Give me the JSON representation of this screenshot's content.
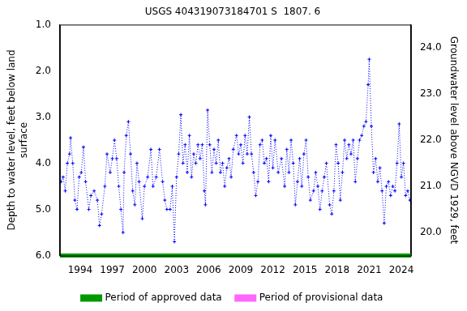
{
  "chart_data": {
    "type": "line",
    "title": "USGS 404319073184701 S  1807. 6",
    "y_label": [
      "Depth to water level, feet below land",
      "surface"
    ],
    "y2_label": "Groundwater level above NGVD 1929, feet",
    "xlim": [
      1992.1,
      2024.9
    ],
    "xticks": [
      1994,
      1997,
      2000,
      2003,
      2006,
      2009,
      2012,
      2015,
      2018,
      2021,
      2024
    ],
    "ylim": [
      1.0,
      6.0
    ],
    "yticks": [
      {
        "value": 1,
        "label": "1.0"
      },
      {
        "value": 2,
        "label": "2.0"
      },
      {
        "value": 3,
        "label": "3.0"
      },
      {
        "value": 4,
        "label": "4.0"
      },
      {
        "value": 5,
        "label": "5.0"
      },
      {
        "value": 6,
        "label": "6.0"
      }
    ],
    "y2lim": [
      19.5,
      24.5
    ],
    "y2ticks": [
      {
        "value": 20,
        "label": "20.0"
      },
      {
        "value": 21,
        "label": "21.0"
      },
      {
        "value": 22,
        "label": "22.0"
      },
      {
        "value": 23,
        "label": "23.0"
      },
      {
        "value": 24,
        "label": "24.0"
      }
    ],
    "grid": false,
    "legend": "bottom",
    "x": [
      1992.2,
      1992.4,
      1992.6,
      1992.8,
      1993.0,
      1993.1,
      1993.3,
      1993.5,
      1993.7,
      1993.9,
      1994.1,
      1994.3,
      1994.5,
      1994.8,
      1995.0,
      1995.3,
      1995.6,
      1995.8,
      1996.0,
      1996.3,
      1996.5,
      1996.8,
      1997.0,
      1997.2,
      1997.4,
      1997.6,
      1997.8,
      1998.0,
      1998.1,
      1998.3,
      1998.5,
      1998.7,
      1998.9,
      1999.1,
      1999.3,
      1999.5,
      1999.8,
      2000.0,
      2000.3,
      2000.6,
      2000.8,
      2001.1,
      2001.4,
      2001.7,
      2001.9,
      2002.1,
      2002.4,
      2002.6,
      2002.8,
      2003.0,
      2003.2,
      2003.4,
      2003.6,
      2003.8,
      2004.0,
      2004.2,
      2004.4,
      2004.6,
      2004.8,
      2005.0,
      2005.2,
      2005.4,
      2005.6,
      2005.7,
      2005.9,
      2006.1,
      2006.3,
      2006.5,
      2006.7,
      2006.9,
      2007.1,
      2007.3,
      2007.5,
      2007.7,
      2007.9,
      2008.1,
      2008.3,
      2008.6,
      2008.8,
      2009.0,
      2009.2,
      2009.4,
      2009.6,
      2009.8,
      2010.0,
      2010.2,
      2010.4,
      2010.6,
      2010.8,
      2011.0,
      2011.2,
      2011.4,
      2011.6,
      2011.8,
      2012.0,
      2012.2,
      2012.5,
      2012.8,
      2013.1,
      2013.3,
      2013.5,
      2013.7,
      2013.9,
      2014.1,
      2014.3,
      2014.5,
      2014.7,
      2014.9,
      2015.1,
      2015.3,
      2015.5,
      2015.8,
      2016.0,
      2016.2,
      2016.4,
      2016.6,
      2016.8,
      2017.0,
      2017.3,
      2017.5,
      2017.7,
      2017.9,
      2018.1,
      2018.3,
      2018.5,
      2018.7,
      2018.9,
      2019.1,
      2019.3,
      2019.5,
      2019.7,
      2019.9,
      2020.1,
      2020.3,
      2020.5,
      2020.7,
      2020.9,
      2021.0,
      2021.2,
      2021.4,
      2021.6,
      2021.8,
      2022.0,
      2022.2,
      2022.4,
      2022.6,
      2022.8,
      2023.0,
      2023.2,
      2023.4,
      2023.6,
      2023.8,
      2024.0,
      2024.2,
      2024.4,
      2024.6,
      2024.8
    ],
    "series": [
      {
        "color": "#0000ff",
        "marker": "plus",
        "line_style": "dotted",
        "values": [
          4.4,
          4.3,
          4.6,
          4.0,
          3.8,
          3.45,
          4.0,
          4.8,
          5.0,
          4.3,
          4.2,
          3.65,
          4.4,
          5.0,
          4.7,
          4.6,
          4.8,
          5.35,
          5.1,
          4.5,
          3.8,
          4.2,
          3.9,
          3.5,
          3.9,
          4.5,
          5.0,
          5.5,
          4.2,
          3.4,
          3.1,
          3.8,
          4.6,
          4.9,
          4.0,
          4.4,
          5.2,
          4.5,
          4.3,
          3.7,
          4.5,
          4.3,
          3.7,
          4.4,
          4.8,
          5.0,
          5.0,
          4.5,
          5.7,
          4.3,
          3.8,
          2.95,
          4.0,
          3.6,
          4.2,
          3.4,
          4.3,
          3.8,
          4.0,
          3.6,
          3.9,
          3.6,
          4.6,
          4.9,
          2.85,
          3.6,
          4.2,
          3.7,
          4.0,
          3.5,
          4.2,
          4.0,
          4.5,
          4.1,
          3.9,
          4.3,
          3.7,
          3.4,
          3.8,
          3.6,
          4.0,
          3.4,
          3.8,
          3.0,
          3.8,
          4.2,
          4.7,
          4.4,
          3.6,
          3.5,
          4.0,
          3.9,
          4.4,
          3.4,
          4.1,
          3.5,
          4.2,
          3.9,
          4.5,
          3.7,
          4.2,
          3.5,
          4.0,
          4.9,
          4.4,
          3.9,
          4.5,
          3.8,
          3.5,
          4.3,
          4.8,
          4.6,
          4.2,
          4.5,
          5.0,
          4.6,
          4.3,
          4.0,
          4.9,
          5.1,
          4.6,
          3.6,
          4.0,
          4.8,
          4.2,
          3.5,
          3.9,
          3.6,
          3.8,
          3.5,
          4.4,
          3.9,
          3.5,
          3.4,
          3.2,
          3.1,
          2.3,
          1.75,
          3.2,
          4.2,
          3.9,
          4.4,
          4.1,
          4.6,
          5.3,
          4.5,
          4.4,
          4.7,
          4.5,
          4.6,
          4.0,
          3.15,
          4.3,
          4.0,
          4.7,
          4.6,
          4.8
        ]
      }
    ],
    "periods": [
      {
        "name": "Period of approved data",
        "color": "#009900",
        "start": 1992.1,
        "end": 2024.9
      },
      {
        "name": "Period of provisional data",
        "color": "#ff66ff"
      }
    ]
  }
}
